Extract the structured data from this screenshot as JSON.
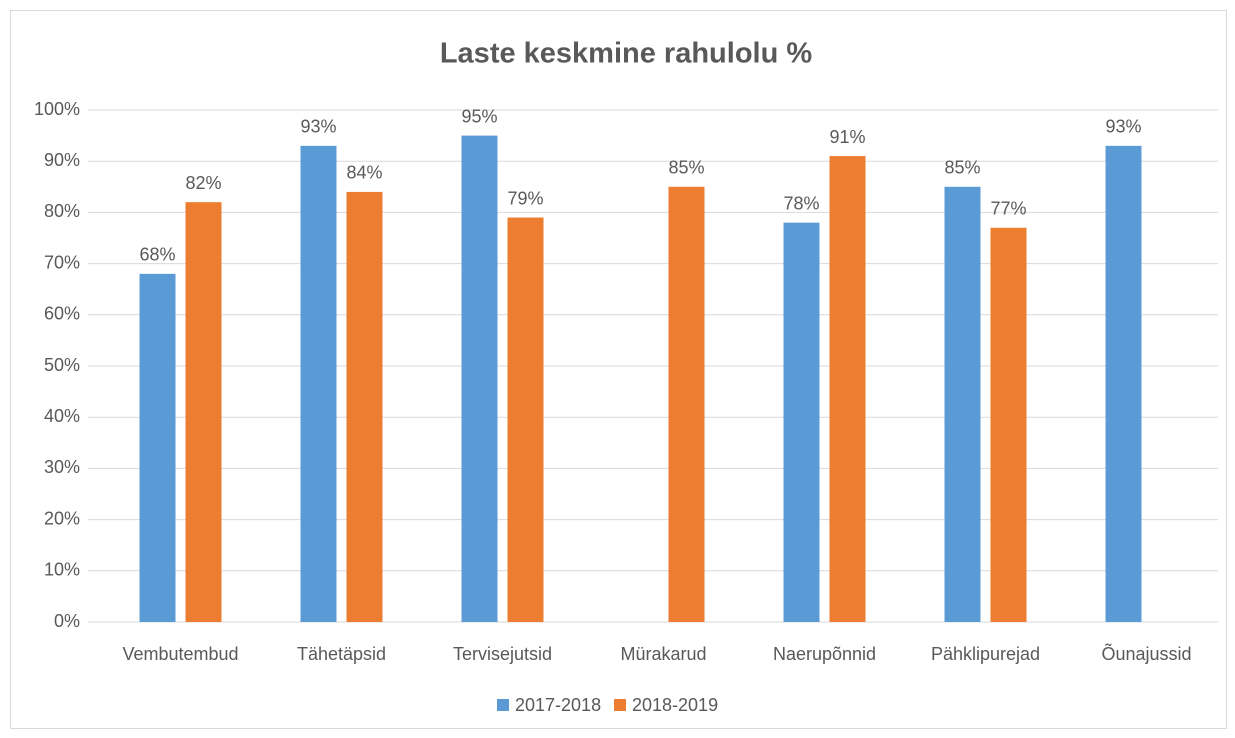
{
  "chart_data": {
    "type": "bar",
    "title": "Laste keskmine rahulolu %",
    "categories": [
      "Vembutembud",
      "Tähetäpsid",
      "Tervisejutsid",
      "Mürakarud",
      "Naerupõnnid",
      "Pähklipurejad",
      "Õunajussid"
    ],
    "series": [
      {
        "name": "2017-2018",
        "color": "#5b9bd5",
        "values": [
          68,
          93,
          95,
          null,
          78,
          85,
          93
        ],
        "value_labels": [
          "68%",
          "93%",
          "95%",
          null,
          "78%",
          "85%",
          "93%"
        ]
      },
      {
        "name": "2018-2019",
        "color": "#ed7d31",
        "values": [
          82,
          84,
          79,
          85,
          91,
          77,
          null
        ],
        "value_labels": [
          "82%",
          "84%",
          "79%",
          "85%",
          "91%",
          "77%",
          null
        ]
      }
    ],
    "ylim": [
      0,
      100
    ],
    "yticks": [
      {
        "value": 0,
        "label": "0%"
      },
      {
        "value": 10,
        "label": "10%"
      },
      {
        "value": 20,
        "label": "20%"
      },
      {
        "value": 30,
        "label": "30%"
      },
      {
        "value": 40,
        "label": "40%"
      },
      {
        "value": 50,
        "label": "50%"
      },
      {
        "value": 60,
        "label": "60%"
      },
      {
        "value": 70,
        "label": "70%"
      },
      {
        "value": 80,
        "label": "80%"
      },
      {
        "value": 90,
        "label": "90%"
      },
      {
        "value": 100,
        "label": "100%"
      }
    ],
    "grid": true,
    "legend": "bottom"
  }
}
